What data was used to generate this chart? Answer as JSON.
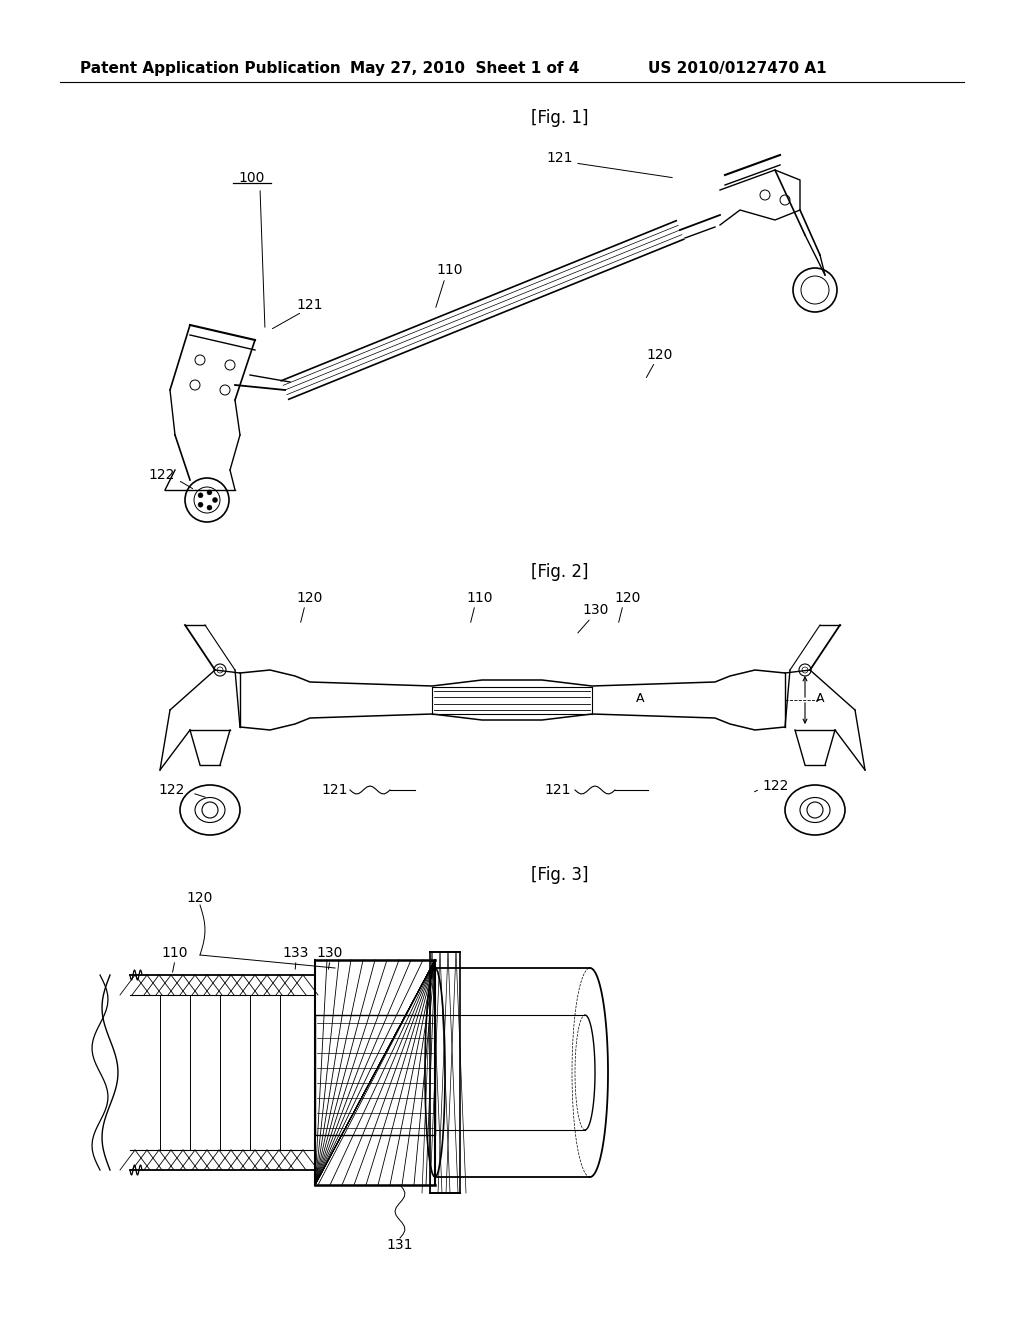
{
  "bg_color": "#ffffff",
  "text_color": "#000000",
  "header_left": "Patent Application Publication",
  "header_center": "May 27, 2010  Sheet 1 of 4",
  "header_right": "US 2010/0127470 A1",
  "fig1_label": "[Fig. 1]",
  "fig2_label": "[Fig. 2]",
  "fig3_label": "[Fig. 3]",
  "lw": 1.0
}
